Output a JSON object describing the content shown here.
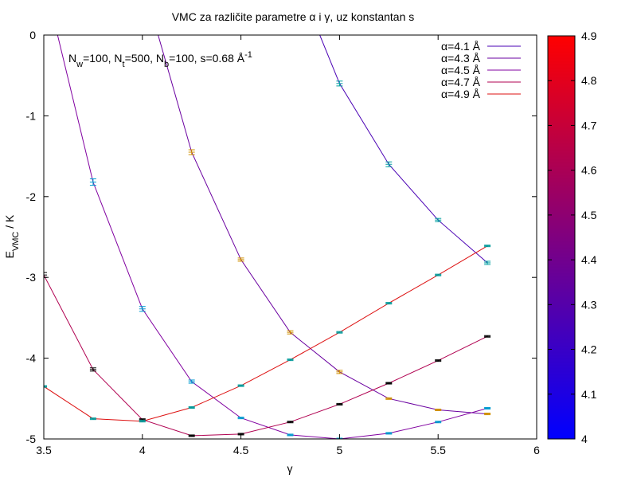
{
  "chart_data": {
    "type": "line",
    "title": "VMC za različite parametre α i γ, uz konstantan s",
    "annotation": {
      "parts": [
        {
          "t": "N",
          "s": "n"
        },
        {
          "t": "w",
          "s": "sub"
        },
        {
          "t": "=100, N",
          "s": "n"
        },
        {
          "t": "t",
          "s": "sub"
        },
        {
          "t": "=500, N",
          "s": "n"
        },
        {
          "t": "b",
          "s": "sub"
        },
        {
          "t": "=100, s=0.68 Å",
          "s": "n"
        },
        {
          "t": "-1",
          "s": "sup"
        }
      ]
    },
    "xlabel": "γ",
    "ylabel_main": "E",
    "ylabel_sub": "VMC",
    "ylabel_tail": " / K",
    "xlim": [
      3.5,
      6
    ],
    "ylim": [
      -5,
      0
    ],
    "xticks": [
      "3.5",
      "4",
      "4.5",
      "5",
      "5.5",
      "6"
    ],
    "yticks": [
      "0",
      "-1",
      "-2",
      "-3",
      "-4",
      "-5"
    ],
    "colorbar": {
      "range": [
        4,
        4.9
      ],
      "ticks": [
        "4",
        "4.1",
        "4.2",
        "4.3",
        "4.4",
        "4.5",
        "4.6",
        "4.7",
        "4.8",
        "4.9"
      ],
      "low_color": "#0000ff",
      "high_color": "#ff0000"
    },
    "legend_position": "top-right",
    "series": [
      {
        "name": "α=4.1 Å",
        "color": "#4a00b4",
        "x": [
          5,
          5.25,
          5.5,
          5.75
        ],
        "y": [
          -0.6,
          -1.6,
          -2.29,
          -2.82
        ],
        "err": [
          0.03,
          0.03,
          0.02,
          0.02
        ],
        "bar_color": "#00a0a0",
        "start": {
          "x": 4.9,
          "y": 0
        }
      },
      {
        "name": "α=4.3 Å",
        "color": "#6a00a0",
        "x": [
          4.25,
          4.5,
          4.75,
          5,
          5.25,
          5.5,
          5.75
        ],
        "y": [
          -1.45,
          -2.78,
          -3.68,
          -4.17,
          -4.5,
          -4.64,
          -4.69
        ],
        "err": [
          0.03,
          0.02,
          0.02,
          0.02,
          0.01,
          0.01,
          0.01
        ],
        "bar_color": "#d09000",
        "start": {
          "x": 4.08,
          "y": 0
        }
      },
      {
        "name": "α=4.5 Å",
        "color": "#8000a0",
        "x": [
          3.75,
          4,
          4.25,
          4.5,
          4.75,
          5,
          5.25,
          5.5,
          5.75
        ],
        "y": [
          -1.82,
          -3.39,
          -4.29,
          -4.74,
          -4.95,
          -5.0,
          -4.93,
          -4.79,
          -4.62
        ],
        "err": [
          0.04,
          0.03,
          0.02,
          0.01,
          0.01,
          0.01,
          0.01,
          0.01,
          0.01
        ],
        "bar_color": "#009ad0",
        "start": {
          "x": 3.57,
          "y": 0
        }
      },
      {
        "name": "α=4.7 Å",
        "color": "#b00050",
        "x": [
          3.5,
          3.75,
          4,
          4.25,
          4.5,
          4.75,
          5,
          5.25,
          5.5,
          5.75
        ],
        "y": [
          -2.97,
          -4.14,
          -4.76,
          -4.96,
          -4.94,
          -4.79,
          -4.57,
          -4.31,
          -4.03,
          -3.73
        ],
        "err": [
          0.03,
          0.02,
          0.01,
          0.01,
          0.01,
          0.01,
          0.01,
          0.01,
          0.01,
          0.01
        ],
        "bar_color": "#000000",
        "start": null
      },
      {
        "name": "α=4.9 Å",
        "color": "#dd1010",
        "x": [
          3.5,
          3.75,
          4,
          4.25,
          4.5,
          4.75,
          5,
          5.25,
          5.5,
          5.75
        ],
        "y": [
          -4.35,
          -4.75,
          -4.78,
          -4.61,
          -4.34,
          -4.02,
          -3.68,
          -3.32,
          -2.97,
          -2.61
        ],
        "err": [
          0.01,
          0.01,
          0.01,
          0.01,
          0.01,
          0.01,
          0.01,
          0.01,
          0.01,
          0.01
        ],
        "bar_color": "#009a9a",
        "start": null
      }
    ]
  }
}
